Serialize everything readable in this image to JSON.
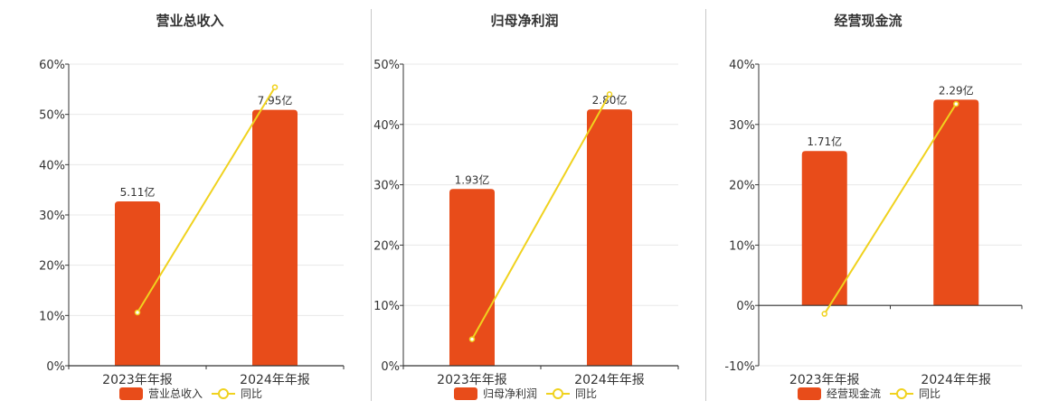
{
  "colors": {
    "bar": "#E84C1A",
    "line": "#F0D21E",
    "grid": "#e8e8e8",
    "axis": "#333333"
  },
  "chart_data": [
    {
      "type": "bar",
      "title": "营业总收入",
      "categories": [
        "2023年年报",
        "2024年年报"
      ],
      "series": [
        {
          "name": "营业总收入",
          "type": "bar",
          "values": [
            32.7,
            50.9
          ],
          "labels": [
            "5.11亿",
            "7.95亿"
          ]
        },
        {
          "name": "同比",
          "type": "line",
          "values": [
            10.6,
            55.4
          ]
        }
      ],
      "ylim": [
        0,
        60
      ],
      "yticks": [
        "0%",
        "10%",
        "20%",
        "30%",
        "40%",
        "50%",
        "60%"
      ],
      "grid": true,
      "legend": "bottom"
    },
    {
      "type": "bar",
      "title": "归母净利润",
      "categories": [
        "2023年年报",
        "2024年年报"
      ],
      "series": [
        {
          "name": "归母净利润",
          "type": "bar",
          "values": [
            29.3,
            42.5
          ],
          "labels": [
            "1.93亿",
            "2.80亿"
          ]
        },
        {
          "name": "同比",
          "type": "line",
          "values": [
            4.4,
            45.0
          ]
        }
      ],
      "ylim": [
        0,
        50
      ],
      "yticks": [
        "0%",
        "10%",
        "20%",
        "30%",
        "40%",
        "50%"
      ],
      "grid": true,
      "legend": "bottom"
    },
    {
      "type": "bar",
      "title": "经营现金流",
      "categories": [
        "2023年年报",
        "2024年年报"
      ],
      "series": [
        {
          "name": "经营现金流",
          "type": "bar",
          "values": [
            25.6,
            34.1
          ],
          "labels": [
            "1.71亿",
            "2.29亿"
          ]
        },
        {
          "name": "同比",
          "type": "line",
          "values": [
            -1.4,
            33.4
          ]
        }
      ],
      "ylim": [
        -10,
        40
      ],
      "yticks": [
        "-10%",
        "0%",
        "10%",
        "20%",
        "30%",
        "40%"
      ],
      "grid": true,
      "legend": "bottom"
    }
  ]
}
